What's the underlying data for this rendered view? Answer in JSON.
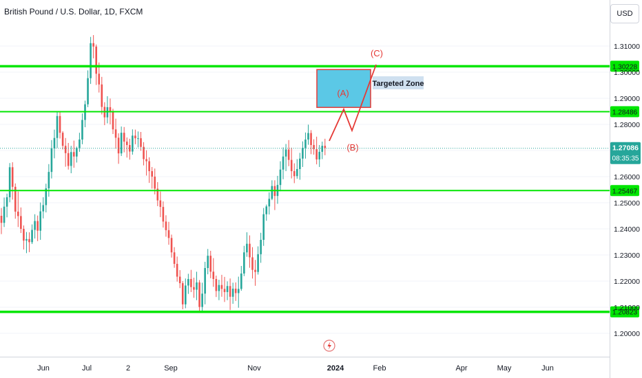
{
  "header": {
    "title": "British Pound / U.S. Dollar, 1D, FXCM",
    "currency_button": "USD"
  },
  "chart_data": {
    "type": "candlestick",
    "symbol": "British Pound / U.S. Dollar",
    "interval": "1D",
    "source": "FXCM",
    "y_axis": {
      "ticks": [
        "1.31000",
        "1.30000",
        "1.29000",
        "1.28000",
        "1.27000",
        "1.26000",
        "1.25000",
        "1.24000",
        "1.23000",
        "1.22000",
        "1.21000",
        "1.20000"
      ],
      "range": [
        1.1955,
        1.3195
      ]
    },
    "x_axis": {
      "ticks": [
        "Jun",
        "Jul",
        "2",
        "Sep",
        "Nov",
        "2024",
        "Feb",
        "Apr",
        "May",
        "Jun"
      ]
    },
    "horizontal_levels": [
      {
        "value": 1.30228,
        "label": "1.30228"
      },
      {
        "value": 1.28486,
        "label": "1.28486"
      },
      {
        "value": 1.25467,
        "label": "1.25467"
      },
      {
        "value": 1.20823,
        "label": "1.20823"
      }
    ],
    "last_price": {
      "value": 1.27086,
      "label": "1.27086",
      "countdown": "08:35:35"
    },
    "annotations": {
      "target_zone_label": "Targeted Zone",
      "wave_labels": [
        "(A)",
        "(B)",
        "(C)"
      ],
      "target_zone_range": [
        1.2865,
        1.301
      ]
    },
    "colors": {
      "up": "#26a69a",
      "down": "#ef5350",
      "level": "#00e600",
      "zone": "#5bc8e6",
      "wave": "#e53935"
    },
    "candles_ohlc": [
      [
        1.245,
        1.248,
        1.238,
        1.2423
      ],
      [
        1.2423,
        1.252,
        1.2407,
        1.2485
      ],
      [
        1.2485,
        1.2535,
        1.2444,
        1.2521
      ],
      [
        1.2521,
        1.2652,
        1.2502,
        1.2636
      ],
      [
        1.2636,
        1.2655,
        1.2512,
        1.2561
      ],
      [
        1.2561,
        1.2574,
        1.2439,
        1.2466
      ],
      [
        1.2466,
        1.2543,
        1.2407,
        1.2449
      ],
      [
        1.2449,
        1.2482,
        1.2384,
        1.24
      ],
      [
        1.24,
        1.2413,
        1.2321,
        1.2355
      ],
      [
        1.2355,
        1.2388,
        1.2307,
        1.2361
      ],
      [
        1.2361,
        1.2387,
        1.2311,
        1.2349
      ],
      [
        1.2349,
        1.2417,
        1.2342,
        1.2396
      ],
      [
        1.2396,
        1.2456,
        1.2363,
        1.243
      ],
      [
        1.243,
        1.2451,
        1.2353,
        1.2393
      ],
      [
        1.2393,
        1.2501,
        1.2358,
        1.2467
      ],
      [
        1.2467,
        1.2521,
        1.244,
        1.2491
      ],
      [
        1.2491,
        1.2573,
        1.2463,
        1.2555
      ],
      [
        1.2555,
        1.2648,
        1.2523,
        1.2618
      ],
      [
        1.2618,
        1.274,
        1.2593,
        1.2708
      ],
      [
        1.2708,
        1.278,
        1.267,
        1.2748
      ],
      [
        1.2748,
        1.2847,
        1.271,
        1.2832
      ],
      [
        1.2832,
        1.2851,
        1.2746,
        1.2768
      ],
      [
        1.2768,
        1.2774,
        1.2704,
        1.2718
      ],
      [
        1.2718,
        1.2748,
        1.2638,
        1.269
      ],
      [
        1.269,
        1.2729,
        1.2627,
        1.2641
      ],
      [
        1.2641,
        1.2718,
        1.2613,
        1.2694
      ],
      [
        1.2694,
        1.2738,
        1.2634,
        1.2677
      ],
      [
        1.2677,
        1.2715,
        1.2654,
        1.271
      ],
      [
        1.271,
        1.2768,
        1.2695,
        1.2742
      ],
      [
        1.2742,
        1.2842,
        1.2724,
        1.2817
      ],
      [
        1.2817,
        1.2891,
        1.2789,
        1.2877
      ],
      [
        1.2877,
        1.3007,
        1.2866,
        1.2977
      ],
      [
        1.2977,
        1.3135,
        1.2955,
        1.3111
      ],
      [
        1.3111,
        1.3142,
        1.3053,
        1.3098
      ],
      [
        1.3098,
        1.3106,
        1.2951,
        1.2994
      ],
      [
        1.2994,
        1.3037,
        1.2922,
        1.2953
      ],
      [
        1.2953,
        1.2982,
        1.2838,
        1.2867
      ],
      [
        1.2867,
        1.2885,
        1.2797,
        1.2827
      ],
      [
        1.2827,
        1.2908,
        1.2804,
        1.2866
      ],
      [
        1.2866,
        1.2899,
        1.28,
        1.285
      ],
      [
        1.285,
        1.286,
        1.2763,
        1.2781
      ],
      [
        1.2781,
        1.2822,
        1.2707,
        1.2749
      ],
      [
        1.2749,
        1.2766,
        1.2649,
        1.2689
      ],
      [
        1.2689,
        1.2792,
        1.2679,
        1.2768
      ],
      [
        1.2768,
        1.279,
        1.2693,
        1.2734
      ],
      [
        1.2734,
        1.275,
        1.2673,
        1.2721
      ],
      [
        1.2721,
        1.2745,
        1.2665,
        1.2696
      ],
      [
        1.2696,
        1.2781,
        1.2684,
        1.2757
      ],
      [
        1.2757,
        1.278,
        1.2724,
        1.2747
      ],
      [
        1.2747,
        1.2773,
        1.2712,
        1.2747
      ],
      [
        1.2747,
        1.2771,
        1.2699,
        1.2714
      ],
      [
        1.2714,
        1.2732,
        1.2643,
        1.2667
      ],
      [
        1.2667,
        1.2701,
        1.2604,
        1.2659
      ],
      [
        1.2659,
        1.2674,
        1.2576,
        1.2621
      ],
      [
        1.2621,
        1.2637,
        1.2554,
        1.26
      ],
      [
        1.26,
        1.2631,
        1.2532,
        1.2554
      ],
      [
        1.2554,
        1.2579,
        1.2487,
        1.2509
      ],
      [
        1.2509,
        1.2543,
        1.2445,
        1.2484
      ],
      [
        1.2484,
        1.2505,
        1.2405,
        1.2428
      ],
      [
        1.2428,
        1.2452,
        1.237,
        1.2395
      ],
      [
        1.2395,
        1.2427,
        1.2339,
        1.2365
      ],
      [
        1.2365,
        1.2378,
        1.229,
        1.231
      ],
      [
        1.231,
        1.233,
        1.2251,
        1.2266
      ],
      [
        1.2266,
        1.2294,
        1.2198,
        1.2217
      ],
      [
        1.2217,
        1.2242,
        1.2173,
        1.2192
      ],
      [
        1.2192,
        1.22,
        1.2092,
        1.2111
      ],
      [
        1.2111,
        1.221,
        1.2096,
        1.2183
      ],
      [
        1.2183,
        1.2228,
        1.2151,
        1.2208
      ],
      [
        1.2208,
        1.2243,
        1.2158,
        1.2177
      ],
      [
        1.2177,
        1.2213,
        1.2136,
        1.2167
      ],
      [
        1.2167,
        1.2236,
        1.2127,
        1.2195
      ],
      [
        1.2195,
        1.2204,
        1.2086,
        1.2101
      ],
      [
        1.2101,
        1.2194,
        1.2081,
        1.2152
      ],
      [
        1.2152,
        1.2274,
        1.2111,
        1.225
      ],
      [
        1.225,
        1.2323,
        1.2226,
        1.2297
      ],
      [
        1.2297,
        1.2316,
        1.2211,
        1.2236
      ],
      [
        1.2236,
        1.2288,
        1.2178,
        1.2208
      ],
      [
        1.2208,
        1.2221,
        1.2139,
        1.2162
      ],
      [
        1.2162,
        1.2205,
        1.2127,
        1.2185
      ],
      [
        1.2185,
        1.2224,
        1.214,
        1.217
      ],
      [
        1.217,
        1.2216,
        1.212,
        1.2158
      ],
      [
        1.2158,
        1.2199,
        1.2127,
        1.2181
      ],
      [
        1.2181,
        1.221,
        1.2089,
        1.214
      ],
      [
        1.214,
        1.2194,
        1.2113,
        1.2171
      ],
      [
        1.2171,
        1.2195,
        1.2124,
        1.2154
      ],
      [
        1.2154,
        1.2217,
        1.2098,
        1.217
      ],
      [
        1.217,
        1.2258,
        1.2163,
        1.2229
      ],
      [
        1.2229,
        1.2335,
        1.2219,
        1.231
      ],
      [
        1.231,
        1.2387,
        1.2293,
        1.2343
      ],
      [
        1.2343,
        1.2375,
        1.2251,
        1.2291
      ],
      [
        1.2291,
        1.233,
        1.221,
        1.2243
      ],
      [
        1.2243,
        1.2281,
        1.2182,
        1.2235
      ],
      [
        1.2235,
        1.2333,
        1.2225,
        1.2303
      ],
      [
        1.2303,
        1.2385,
        1.227,
        1.2358
      ],
      [
        1.2358,
        1.248,
        1.2335,
        1.2456
      ],
      [
        1.2456,
        1.2493,
        1.2431,
        1.2486
      ],
      [
        1.2486,
        1.254,
        1.2455,
        1.2515
      ],
      [
        1.2515,
        1.2586,
        1.251,
        1.2564
      ],
      [
        1.2564,
        1.2586,
        1.2472,
        1.2526
      ],
      [
        1.2526,
        1.2603,
        1.2496,
        1.2568
      ],
      [
        1.2568,
        1.2659,
        1.2544,
        1.2627
      ],
      [
        1.2627,
        1.2712,
        1.259,
        1.2677
      ],
      [
        1.2677,
        1.2725,
        1.2621,
        1.2704
      ],
      [
        1.2704,
        1.274,
        1.264,
        1.2664
      ],
      [
        1.2664,
        1.2711,
        1.2593,
        1.2621
      ],
      [
        1.2621,
        1.2651,
        1.2575,
        1.2602
      ],
      [
        1.2602,
        1.2667,
        1.2592,
        1.2629
      ],
      [
        1.2629,
        1.2691,
        1.2588,
        1.2669
      ],
      [
        1.2669,
        1.2735,
        1.2637,
        1.271
      ],
      [
        1.271,
        1.2769,
        1.2669,
        1.2742
      ],
      [
        1.2742,
        1.2799,
        1.2722,
        1.2767
      ],
      [
        1.2767,
        1.2778,
        1.2686,
        1.2721
      ],
      [
        1.2721,
        1.2743,
        1.2684,
        1.2705
      ],
      [
        1.2705,
        1.2753,
        1.2647,
        1.2666
      ],
      [
        1.2666,
        1.2721,
        1.2637,
        1.2695
      ],
      [
        1.2695,
        1.2734,
        1.2667,
        1.2718
      ],
      [
        1.2718,
        1.2745,
        1.2682,
        1.2709
      ]
    ]
  }
}
